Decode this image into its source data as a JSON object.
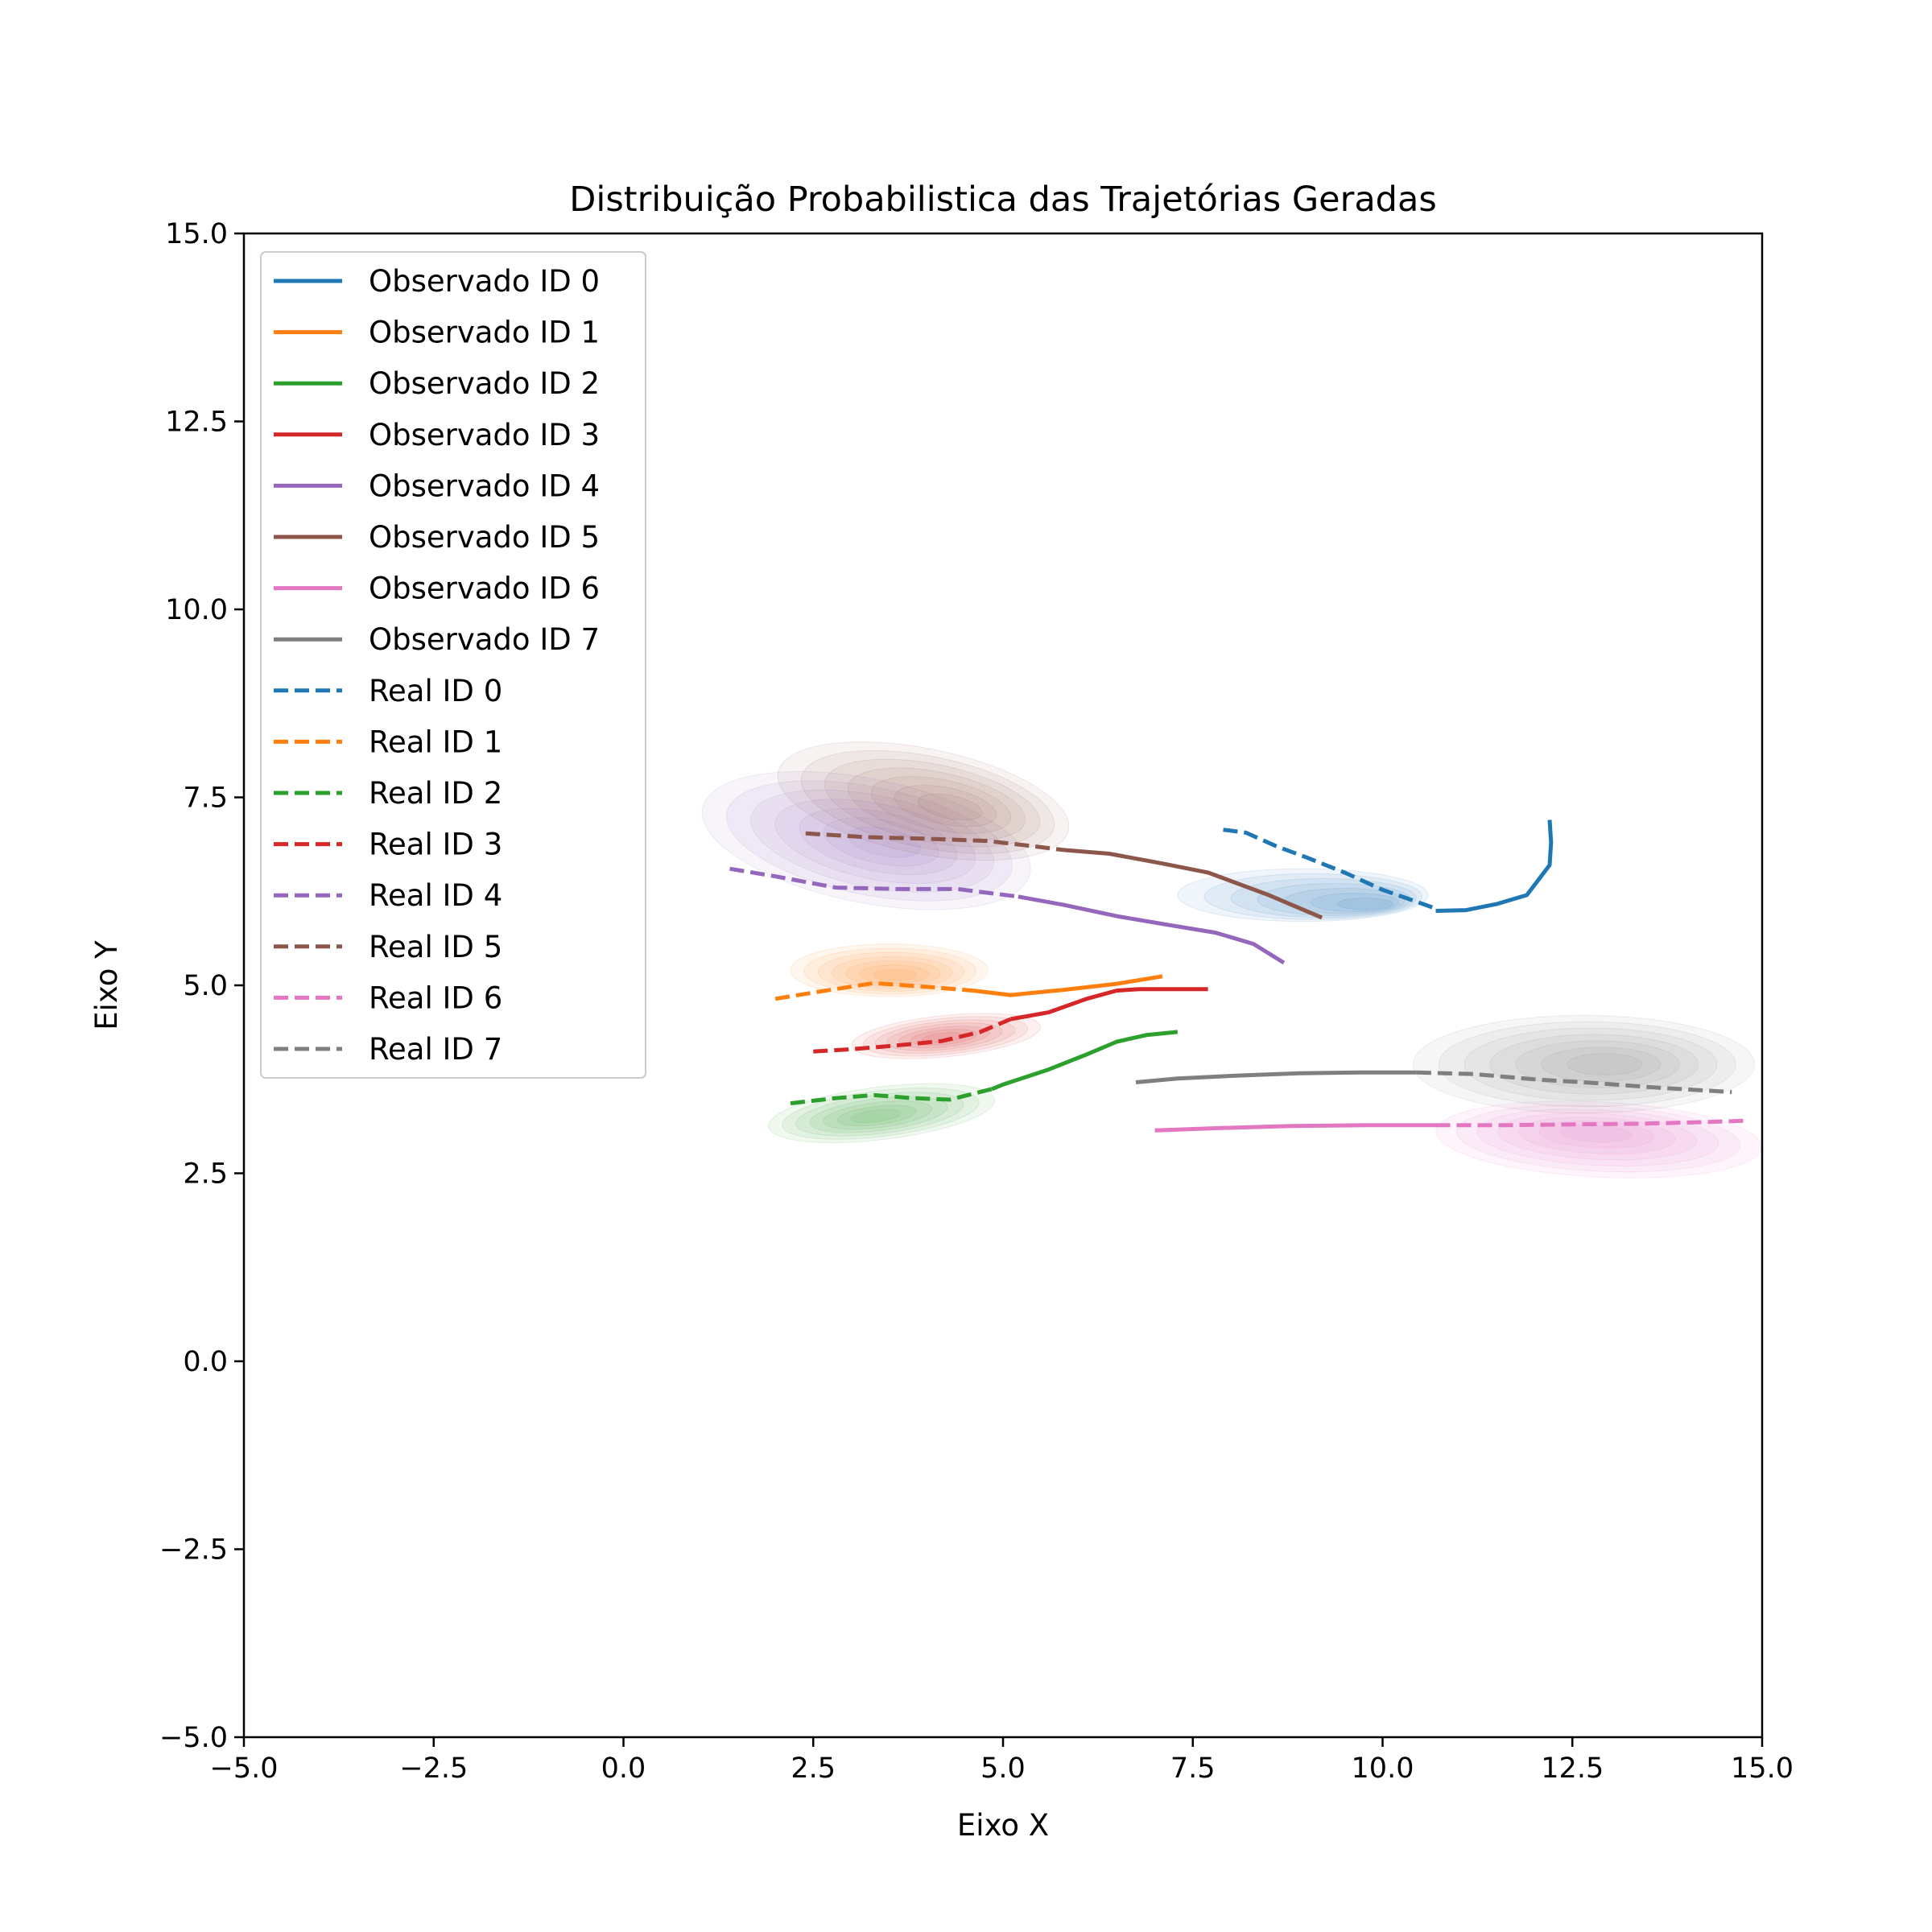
{
  "chart_data": {
    "type": "line",
    "title": "Distribuição Probabilistica das Trajetórias Geradas",
    "xlabel": "Eixo X",
    "ylabel": "Eixo Y",
    "xlim": [
      -5.0,
      15.0
    ],
    "ylim": [
      -5.0,
      15.0
    ],
    "xticks": [
      "−5.0",
      "−2.5",
      "0.0",
      "2.5",
      "5.0",
      "7.5",
      "10.0",
      "12.5",
      "15.0"
    ],
    "yticks": [
      "−5.0",
      "−2.5",
      "0.0",
      "2.5",
      "5.0",
      "7.5",
      "10.0",
      "12.5",
      "15.0"
    ],
    "grid": false,
    "legend_position": "top-left",
    "colors": [
      "#1f77b4",
      "#ff7f0e",
      "#2ca02c",
      "#d62728",
      "#9467bd",
      "#8c564b",
      "#e377c2",
      "#7f7f7f"
    ],
    "series": [
      {
        "name": "Observado ID 0",
        "style": "solid",
        "color": "#1f77b4",
        "points": [
          [
            12.2,
            7.2
          ],
          [
            12.22,
            6.9
          ],
          [
            12.2,
            6.6
          ],
          [
            11.9,
            6.2
          ],
          [
            11.5,
            6.08
          ],
          [
            11.1,
            6.0
          ],
          [
            10.7,
            5.99
          ]
        ]
      },
      {
        "name": "Observado ID 1",
        "style": "solid",
        "color": "#ff7f0e",
        "points": [
          [
            7.1,
            5.12
          ],
          [
            6.5,
            5.02
          ],
          [
            5.8,
            4.94
          ],
          [
            5.1,
            4.87
          ],
          [
            4.6,
            4.93
          ]
        ]
      },
      {
        "name": "Observado ID 2",
        "style": "solid",
        "color": "#2ca02c",
        "points": [
          [
            7.3,
            4.38
          ],
          [
            6.9,
            4.34
          ],
          [
            6.5,
            4.25
          ],
          [
            6.1,
            4.08
          ],
          [
            5.6,
            3.88
          ],
          [
            5.0,
            3.68
          ],
          [
            4.85,
            3.62
          ]
        ]
      },
      {
        "name": "Observado ID 3",
        "style": "solid",
        "color": "#d62728",
        "points": [
          [
            7.7,
            4.95
          ],
          [
            7.2,
            4.95
          ],
          [
            6.8,
            4.95
          ],
          [
            6.5,
            4.93
          ],
          [
            6.1,
            4.82
          ],
          [
            5.6,
            4.64
          ],
          [
            5.1,
            4.55
          ]
        ]
      },
      {
        "name": "Observado ID 4",
        "style": "solid",
        "color": "#9467bd",
        "points": [
          [
            8.7,
            5.3
          ],
          [
            8.3,
            5.55
          ],
          [
            7.8,
            5.7
          ],
          [
            7.2,
            5.8
          ],
          [
            6.5,
            5.92
          ],
          [
            5.8,
            6.07
          ],
          [
            5.2,
            6.18
          ]
        ]
      },
      {
        "name": "Observado ID 5",
        "style": "solid",
        "color": "#8c564b",
        "points": [
          [
            9.2,
            5.9
          ],
          [
            8.5,
            6.2
          ],
          [
            7.7,
            6.5
          ],
          [
            7.1,
            6.62
          ],
          [
            6.4,
            6.75
          ],
          [
            5.8,
            6.8
          ]
        ]
      },
      {
        "name": "Observado ID 6",
        "style": "solid",
        "color": "#e377c2",
        "points": [
          [
            7.0,
            3.07
          ],
          [
            7.8,
            3.1
          ],
          [
            8.8,
            3.13
          ],
          [
            9.8,
            3.14
          ],
          [
            10.7,
            3.14
          ]
        ]
      },
      {
        "name": "Observado ID 7",
        "style": "solid",
        "color": "#7f7f7f",
        "points": [
          [
            6.75,
            3.71
          ],
          [
            7.3,
            3.76
          ],
          [
            8.1,
            3.8
          ],
          [
            8.9,
            3.83
          ],
          [
            9.7,
            3.84
          ],
          [
            10.45,
            3.84
          ]
        ]
      },
      {
        "name": "Real ID 0",
        "style": "dashed",
        "color": "#1f77b4",
        "points": [
          [
            7.9,
            7.07
          ],
          [
            8.2,
            7.03
          ],
          [
            8.6,
            6.85
          ],
          [
            9.0,
            6.7
          ],
          [
            9.5,
            6.5
          ],
          [
            10.0,
            6.27
          ],
          [
            10.4,
            6.13
          ],
          [
            10.7,
            6.02
          ]
        ]
      },
      {
        "name": "Real ID 1",
        "style": "dashed",
        "color": "#ff7f0e",
        "points": [
          [
            2.0,
            4.82
          ],
          [
            2.6,
            4.92
          ],
          [
            3.3,
            5.03
          ],
          [
            4.0,
            4.98
          ],
          [
            4.6,
            4.93
          ]
        ]
      },
      {
        "name": "Real ID 2",
        "style": "dashed",
        "color": "#2ca02c",
        "points": [
          [
            2.2,
            3.43
          ],
          [
            2.8,
            3.5
          ],
          [
            3.3,
            3.54
          ],
          [
            3.8,
            3.5
          ],
          [
            4.3,
            3.48
          ],
          [
            4.85,
            3.62
          ]
        ]
      },
      {
        "name": "Real ID 3",
        "style": "dashed",
        "color": "#d62728",
        "points": [
          [
            2.5,
            4.12
          ],
          [
            3.0,
            4.15
          ],
          [
            3.6,
            4.2
          ],
          [
            4.2,
            4.26
          ],
          [
            4.7,
            4.38
          ],
          [
            5.1,
            4.55
          ]
        ]
      },
      {
        "name": "Real ID 4",
        "style": "dashed",
        "color": "#9467bd",
        "points": [
          [
            1.4,
            6.55
          ],
          [
            2.0,
            6.45
          ],
          [
            2.8,
            6.3
          ],
          [
            3.6,
            6.28
          ],
          [
            4.4,
            6.28
          ],
          [
            5.2,
            6.18
          ]
        ]
      },
      {
        "name": "Real ID 5",
        "style": "dashed",
        "color": "#8c564b",
        "points": [
          [
            2.4,
            7.02
          ],
          [
            3.2,
            6.97
          ],
          [
            4.0,
            6.95
          ],
          [
            4.8,
            6.92
          ],
          [
            5.4,
            6.85
          ],
          [
            5.8,
            6.8
          ]
        ]
      },
      {
        "name": "Real ID 6",
        "style": "dashed",
        "color": "#e377c2",
        "points": [
          [
            10.7,
            3.14
          ],
          [
            11.6,
            3.14
          ],
          [
            12.5,
            3.15
          ],
          [
            13.4,
            3.16
          ],
          [
            14.2,
            3.18
          ],
          [
            14.8,
            3.2
          ]
        ]
      },
      {
        "name": "Real ID 7",
        "style": "dashed",
        "color": "#7f7f7f",
        "points": [
          [
            10.45,
            3.84
          ],
          [
            11.2,
            3.82
          ],
          [
            12.0,
            3.75
          ],
          [
            12.8,
            3.7
          ],
          [
            13.6,
            3.64
          ],
          [
            14.6,
            3.58
          ]
        ]
      }
    ],
    "density_regions": [
      {
        "color": "#1f77b4",
        "center": [
          10.0,
          6.05
        ],
        "extent": [
          [
            7.3,
            10.6
          ],
          [
            5.85,
            6.55
          ]
        ],
        "tilt": 0.0
      },
      {
        "color": "#ff7f0e",
        "center": [
          3.6,
          5.12
        ],
        "extent": [
          [
            2.2,
            4.8
          ],
          [
            4.85,
            5.55
          ]
        ],
        "tilt": 0.0
      },
      {
        "color": "#2ca02c",
        "center": [
          3.3,
          3.25
        ],
        "extent": [
          [
            1.9,
            4.9
          ],
          [
            2.95,
            3.65
          ]
        ],
        "tilt": 0.12
      },
      {
        "color": "#d62728",
        "center": [
          4.2,
          4.3
        ],
        "extent": [
          [
            3.0,
            5.5
          ],
          [
            4.05,
            4.6
          ]
        ],
        "tilt": 0.1
      },
      {
        "color": "#9467bd",
        "center": [
          3.5,
          6.9
        ],
        "extent": [
          [
            1.0,
            5.4
          ],
          [
            6.1,
            7.75
          ]
        ],
        "tilt": -0.2
      },
      {
        "color": "#8c564b",
        "center": [
          4.4,
          7.35
        ],
        "extent": [
          [
            2.0,
            5.9
          ],
          [
            6.75,
            8.15
          ]
        ],
        "tilt": -0.2
      },
      {
        "color": "#e377c2",
        "center": [
          12.8,
          3.05
        ],
        "extent": [
          [
            10.7,
            15.0
          ],
          [
            2.45,
            3.45
          ]
        ],
        "tilt": -0.05
      },
      {
        "color": "#7f7f7f",
        "center": [
          13.0,
          3.95
        ],
        "extent": [
          [
            10.4,
            14.9
          ],
          [
            3.3,
            4.6
          ]
        ],
        "tilt": 0.0
      }
    ]
  }
}
